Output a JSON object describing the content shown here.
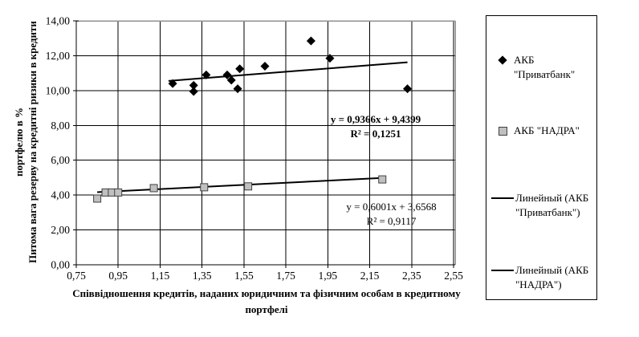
{
  "chart_data": {
    "type": "scatter",
    "x_axis": {
      "title_line1": "Співвідношення кредитів, наданих юридичним та фізичним особам в кредитному",
      "title_line2": "портфелі",
      "range": [
        0.75,
        2.55
      ],
      "tick_values": [
        0.75,
        0.95,
        1.15,
        1.35,
        1.55,
        1.75,
        1.95,
        2.15,
        2.35,
        2.55
      ],
      "tick_labels": [
        "0,75",
        "0,95",
        "1,15",
        "1,35",
        "1,55",
        "1,75",
        "1,95",
        "2,15",
        "2,35",
        "2,55"
      ]
    },
    "y_axis": {
      "title_line1": "Питома вага резерву на кредитні ризики в кредити",
      "title_line2": "портфелю в %",
      "range": [
        0,
        14
      ],
      "tick_values": [
        0,
        2,
        4,
        6,
        8,
        10,
        12,
        14
      ],
      "tick_labels": [
        "0,00",
        "2,00",
        "4,00",
        "6,00",
        "8,00",
        "10,00",
        "12,00",
        "14,00"
      ]
    },
    "grid": true,
    "legend_position": "right",
    "series": [
      {
        "name": "АКБ \"Приватбанк\"",
        "marker": "diamond",
        "color": "#000000",
        "points": [
          [
            1.21,
            10.4
          ],
          [
            1.31,
            10.3
          ],
          [
            1.31,
            9.95
          ],
          [
            1.37,
            10.9
          ],
          [
            1.47,
            10.9
          ],
          [
            1.49,
            10.6
          ],
          [
            1.52,
            10.1
          ],
          [
            1.53,
            11.25
          ],
          [
            1.65,
            11.4
          ],
          [
            1.87,
            12.85
          ],
          [
            1.96,
            11.85
          ],
          [
            2.33,
            10.1
          ]
        ]
      },
      {
        "name": "АКБ \"НАДРА\"",
        "marker": "square",
        "color": "#c0c0c0",
        "points": [
          [
            0.85,
            3.8
          ],
          [
            0.89,
            4.15
          ],
          [
            0.92,
            4.15
          ],
          [
            0.95,
            4.15
          ],
          [
            1.12,
            4.4
          ],
          [
            1.36,
            4.45
          ],
          [
            1.57,
            4.5
          ],
          [
            2.21,
            4.9
          ]
        ]
      }
    ],
    "trendlines": [
      {
        "name": "Линейный (АКБ \"Приватбанк\")",
        "slope": 0.9366,
        "intercept": 9.4399,
        "x_start": 1.19,
        "x_end": 2.33,
        "equation": "y = 0,9366x + 9,4399",
        "r_squared": "R² = 0,1251"
      },
      {
        "name": "Линейный (АКБ \"НАДРА\")",
        "slope": 0.6001,
        "intercept": 3.6568,
        "x_start": 0.85,
        "x_end": 2.21,
        "equation": "y = 0,6001x + 3,6568",
        "r_squared": "R² = 0,9117"
      }
    ],
    "legend": {
      "items": [
        {
          "label": "АКБ \"Приватбанк\"",
          "symbol": "diamond"
        },
        {
          "label": "АКБ \"НАДРА\"",
          "symbol": "square"
        },
        {
          "label": "Линейный (АКБ \"Приватбанк\")",
          "symbol": "line"
        },
        {
          "label": "Линейный (АКБ \"НАДРА\")",
          "symbol": "line"
        }
      ]
    }
  }
}
